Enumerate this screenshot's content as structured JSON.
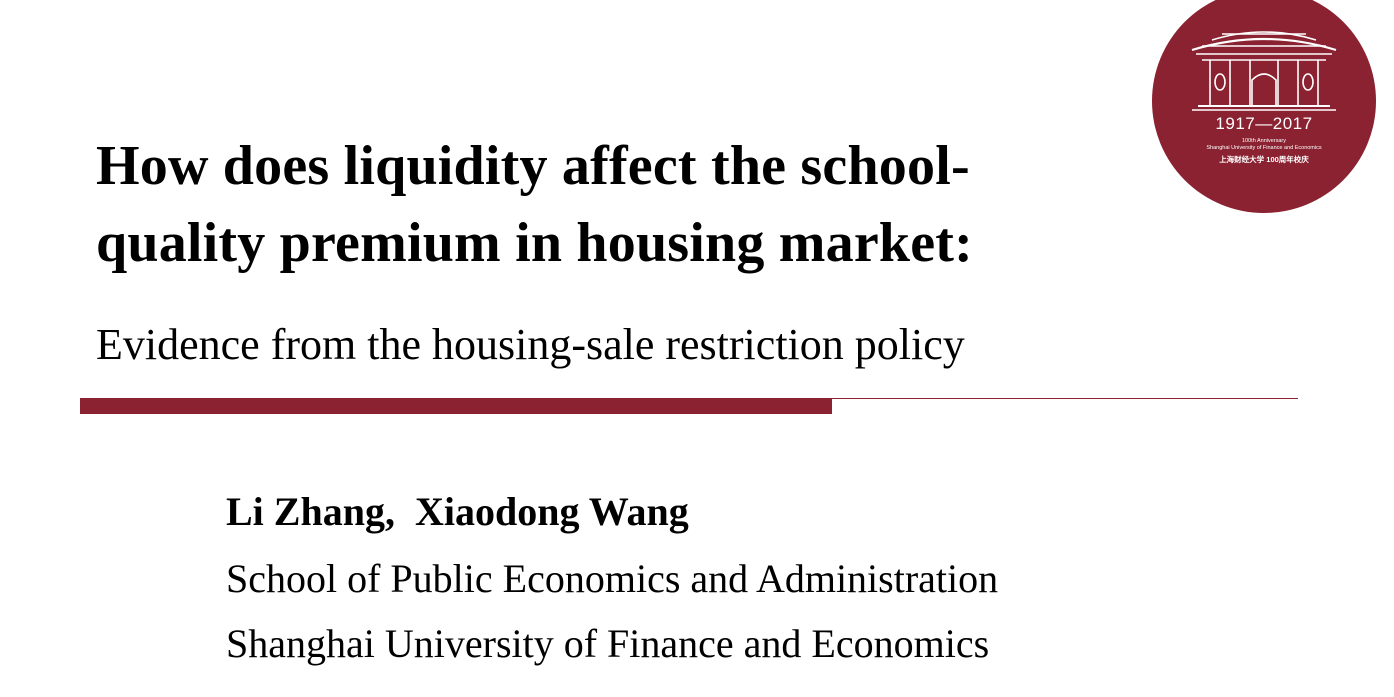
{
  "slide": {
    "title_line_1": "How does liquidity affect the school-",
    "title_line_2": "quality premium in housing market:",
    "subtitle": "Evidence from the housing-sale restriction policy",
    "authors": "Li Zhang,  Xiaodong Wang",
    "affiliation_1": "School of Public Economics and Administration",
    "affiliation_2": "Shanghai University of Finance and Economics",
    "accent_color": "#8b2231"
  },
  "logo": {
    "years": "1917—2017",
    "line_1": "100th Anniversary",
    "line_2": "Shanghai University of Finance and Economics",
    "chinese": "上海财经大学 100周年校庆",
    "background_color": "#8b2231",
    "icon": "university-gate-icon"
  }
}
